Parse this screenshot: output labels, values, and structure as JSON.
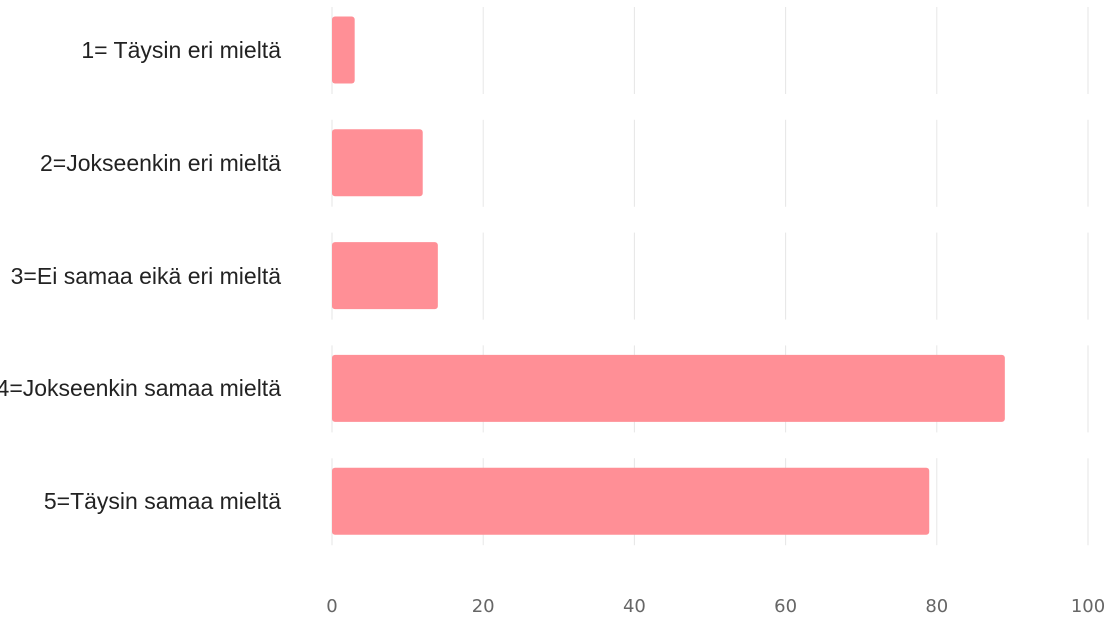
{
  "chart_data": {
    "type": "bar",
    "orientation": "horizontal",
    "categories": [
      "1= Täysin eri mieltä",
      "2=Jokseenkin eri mieltä",
      "3=Ei samaa eikä eri mieltä",
      "4=Jokseenkin samaa mieltä",
      "5=Täysin samaa mieltä"
    ],
    "values": [
      3,
      12,
      14,
      89,
      79
    ],
    "color": "#ff8f96",
    "xlim": [
      0,
      100
    ],
    "xticks": [
      0,
      20,
      40,
      60,
      80,
      100
    ],
    "grid": true
  }
}
